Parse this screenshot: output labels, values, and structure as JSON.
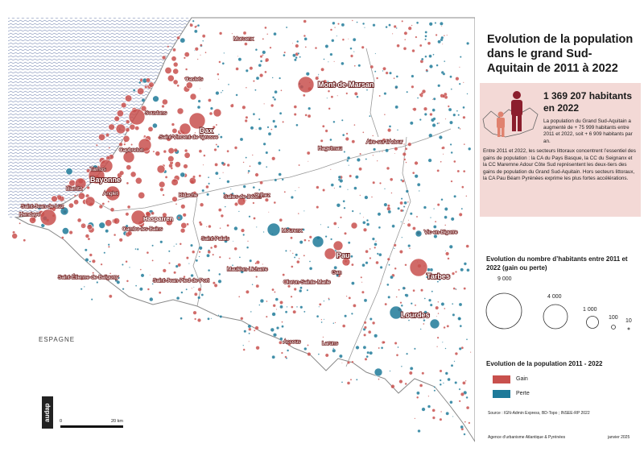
{
  "title": "Evolution de la population dans le grand Sud-Aquitain de 2011 à 2022",
  "highlight": {
    "number": "1 369 207 habitants en 2022",
    "text1": "La population du Grand Sud-Aquitain a augmenté de + 75 999 habitants entre 2011 et 2022, soit + 6 909 habitants par an.",
    "text2": "Entre 2011 et 2022, les secteurs littoraux concentrent l’essentiel des gains de population : la CA du Pays Basque, la CC du Seignanx et la CC Maremne Adour Côte Sud représentent les deux-tiers des gains de population du Grand Sud-Aquitain. Hors secteurs littoraux, la CA Pau Béarn Pyrénées exprime les plus fortes accélérations."
  },
  "legend_size": {
    "title": "Evolution du nombre d’habitants entre 2011 et 2022 (gain ou perte)",
    "items": [
      {
        "label": "9 000",
        "value": 9000
      },
      {
        "label": "4 000",
        "value": 4000
      },
      {
        "label": "1 000",
        "value": 1000
      },
      {
        "label": "100",
        "value": 100
      },
      {
        "label": "10",
        "value": 10
      }
    ]
  },
  "legend_color": {
    "title": "Evolution de la population 2011 - 2022",
    "items": [
      {
        "label": "Gain",
        "color": "#c8504d"
      },
      {
        "label": "Perte",
        "color": "#1e7a99"
      }
    ]
  },
  "colors": {
    "gain": "#c8504d",
    "loss": "#1e7a99",
    "ocean": "#9aa9c9",
    "border": "#7d7d7d"
  },
  "source": "Source : IGN-Admin Express, BD-Topo ; INSEE-RP 2022",
  "agency": "Agence d’urbanisme Atlantique & Pyrénées",
  "date": "janvier 2025",
  "scale": {
    "start": "0",
    "end": "20 km"
  },
  "logo_text": "audap",
  "country_label": "ESPAGNE",
  "towns": {
    "morcenx": "Morcenx",
    "castets": "Castets",
    "mont_de_marsan": "Mont-de-Marsan",
    "soustons": "Soustons",
    "dax": "Dax",
    "saint_vincent": "Saint-Vincent-de-Tyrosse",
    "capbreton": "Capbreton",
    "hagetmau": "Hagetmau",
    "aire_sur_l_adour": "Aire-sur-l’Adour",
    "tarnos": "Tarnos",
    "bayonne": "Bayonne",
    "biarritz": "Biarritz",
    "anglet": "Anglet",
    "saint_jean_de_luz": "Saint-Jean-de-Luz",
    "hendaye": "Hendaye",
    "bidache": "Bidache",
    "salies": "Salies-de-Béarn",
    "orthez": "Orthez",
    "hasparren": "Hasparren",
    "cambo": "Cambo-les-Bains",
    "mourenx": "Mourenx",
    "vic_en_bigorre": "Vic-en-Bigorre",
    "saint_palais": "Saint-Palais",
    "pau": "Pau",
    "mauleon": "Mauléon-Licharre",
    "gan": "Gan",
    "tarbes": "Tarbes",
    "saint_etienne": "Saint-Étienne-de-Baïgorry",
    "saint_jean_pied": "Saint-Jean-Pied-de-Port",
    "oloron": "Oloron-Sainte-Marie",
    "lourdes": "Lourdes",
    "accous": "Accous",
    "laruns": "Laruns"
  }
}
